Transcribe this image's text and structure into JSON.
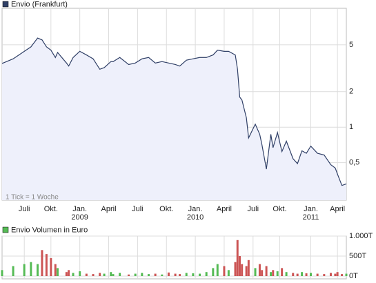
{
  "chart_data": [
    {
      "type": "line",
      "annotation": "1 Tick = 1 Woche",
      "series": [
        {
          "name": "Envio (Frankfurt)",
          "color": "#2f3f66",
          "fill": "#eef0fb",
          "x": [
            0,
            5,
            10,
            13,
            16,
            18,
            20,
            22,
            24,
            25,
            29,
            30,
            32,
            35,
            38,
            41,
            44,
            46,
            49,
            50,
            53,
            57,
            60,
            63,
            66,
            69,
            72,
            75,
            78,
            80,
            83,
            86,
            89,
            92,
            95,
            97,
            100,
            102,
            105,
            106,
            107,
            108,
            110,
            111,
            114,
            116,
            117,
            119,
            121,
            122,
            124,
            126,
            128,
            131,
            133,
            135,
            137,
            139,
            142,
            145,
            148,
            150,
            151,
            153,
            155
          ],
          "values": [
            3.47,
            3.8,
            4.4,
            4.8,
            5.7,
            5.5,
            4.8,
            4.5,
            3.9,
            4.3,
            3.5,
            3.3,
            3.9,
            4.4,
            4.1,
            3.8,
            3.1,
            3.2,
            3.6,
            3.6,
            3.9,
            3.4,
            3.5,
            3.8,
            3.9,
            3.5,
            3.6,
            3.5,
            3.4,
            3.3,
            3.7,
            3.8,
            3.9,
            3.9,
            4.1,
            4.5,
            4.4,
            4.4,
            4.1,
            3.1,
            1.8,
            1.7,
            1.2,
            0.81,
            1.06,
            0.87,
            0.71,
            0.44,
            0.87,
            0.67,
            0.9,
            0.62,
            0.76,
            0.54,
            0.49,
            0.63,
            0.6,
            0.69,
            0.6,
            0.58,
            0.48,
            0.45,
            0.4,
            0.32,
            0.33
          ]
        }
      ],
      "xlim": [
        0,
        155
      ],
      "xticks": [
        {
          "value": 10,
          "label": "Juli"
        },
        {
          "value": 22,
          "label": "Okt."
        },
        {
          "value": 35,
          "label": "Jan."
        },
        {
          "value": 48,
          "label": "April"
        },
        {
          "value": 61,
          "label": "Juli"
        },
        {
          "value": 74,
          "label": "Okt."
        },
        {
          "value": 87,
          "label": "Jan."
        },
        {
          "value": 100,
          "label": "April"
        },
        {
          "value": 113,
          "label": "Juli"
        },
        {
          "value": 125,
          "label": "Okt."
        },
        {
          "value": 139,
          "label": "Jan."
        },
        {
          "value": 151,
          "label": "April"
        }
      ],
      "x_year_labels": [
        {
          "value": 35,
          "label": "2009"
        },
        {
          "value": 87,
          "label": "2010"
        },
        {
          "value": 139,
          "label": "2011"
        }
      ],
      "ylim": [
        0.24,
        10.2
      ],
      "log_scale": true,
      "yticks": [
        {
          "value": 0.5,
          "label": "0,5"
        },
        1,
        2,
        5
      ],
      "grid": true
    },
    {
      "type": "bar",
      "series": [
        {
          "name": "Envio Volumen in Euro",
          "color": "#55bb55",
          "x": [
            0,
            5,
            10,
            13,
            16,
            18,
            20,
            22,
            24,
            25,
            29,
            30,
            32,
            35,
            38,
            41,
            44,
            46,
            49,
            50,
            53,
            57,
            60,
            63,
            66,
            69,
            72,
            75,
            78,
            80,
            83,
            86,
            89,
            92,
            95,
            97,
            100,
            102,
            105,
            106,
            107,
            108,
            110,
            111,
            114,
            116,
            117,
            119,
            121,
            122,
            124,
            126,
            128,
            131,
            133,
            135,
            137,
            139,
            142,
            145,
            148,
            150,
            151,
            153,
            155
          ],
          "values": [
            150,
            250,
            300,
            350,
            300,
            650,
            550,
            450,
            300,
            200,
            100,
            150,
            80,
            120,
            60,
            50,
            80,
            60,
            100,
            50,
            80,
            40,
            60,
            80,
            50,
            60,
            40,
            90,
            60,
            50,
            80,
            70,
            60,
            100,
            200,
            300,
            250,
            150,
            350,
            900,
            500,
            300,
            250,
            400,
            200,
            300,
            150,
            250,
            100,
            150,
            120,
            200,
            100,
            80,
            60,
            100,
            70,
            80,
            60,
            50,
            80,
            60,
            100,
            50,
            60
          ],
          "colors": [
            "#55bb55",
            "#55bb55",
            "#55bb55",
            "#55bb55",
            "#55bb55",
            "#cc5555",
            "#cc5555",
            "#cc5555",
            "#cc5555",
            "#55bb55",
            "#cc5555",
            "#cc5555",
            "#55bb55",
            "#55bb55",
            "#cc5555",
            "#cc5555",
            "#cc5555",
            "#55bb55",
            "#55bb55",
            "#55bb55",
            "#55bb55",
            "#cc5555",
            "#55bb55",
            "#55bb55",
            "#55bb55",
            "#cc5555",
            "#55bb55",
            "#cc5555",
            "#cc5555",
            "#cc5555",
            "#55bb55",
            "#55bb55",
            "#55bb55",
            "#55bb55",
            "#55bb55",
            "#55bb55",
            "#cc5555",
            "#55bb55",
            "#cc5555",
            "#cc5555",
            "#cc5555",
            "#cc5555",
            "#cc5555",
            "#cc5555",
            "#55bb55",
            "#cc5555",
            "#cc5555",
            "#cc5555",
            "#55bb55",
            "#cc5555",
            "#55bb55",
            "#cc5555",
            "#55bb55",
            "#cc5555",
            "#cc5555",
            "#55bb55",
            "#cc5555",
            "#55bb55",
            "#cc5555",
            "#cc5555",
            "#cc5555",
            "#cc5555",
            "#cc5555",
            "#cc5555",
            "#55bb55"
          ]
        }
      ],
      "xlim": [
        0,
        155
      ],
      "ylim": [
        0,
        1000
      ],
      "yticks": [
        {
          "value": 0,
          "label": "0T"
        },
        {
          "value": 500,
          "label": "500T"
        },
        {
          "value": 1000,
          "label": "1.000T"
        }
      ],
      "grid": true
    }
  ]
}
